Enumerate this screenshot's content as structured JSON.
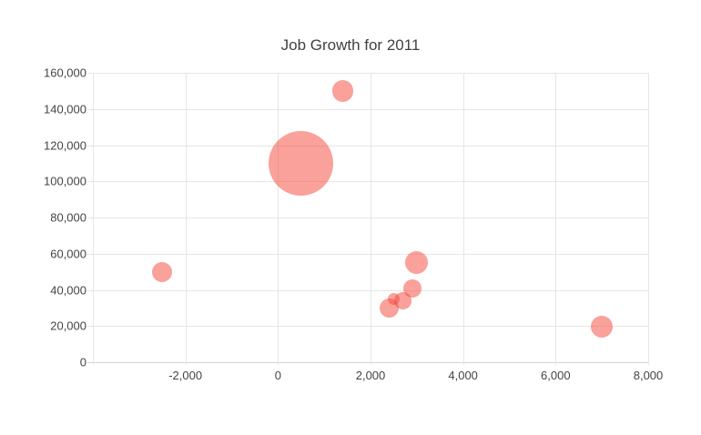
{
  "title": "Job Growth for 2011",
  "colors": {
    "bubble_fill": "#F44336",
    "bubble_opacity": 0.5,
    "title_text": "#424242",
    "axis_text": "#444444",
    "gridline": "#E6E6E6",
    "baseline": "#D4D4D4",
    "background": "#FFFFFF"
  },
  "chart_data": {
    "type": "scatter",
    "variant": "bubble",
    "title": "Job Growth for 2011",
    "xlabel": "",
    "ylabel": "",
    "xlim": [
      -4000,
      8000
    ],
    "ylim": [
      0,
      160000
    ],
    "grid": true,
    "legend": "none",
    "x_gridlines": [
      -4000,
      -2000,
      0,
      2000,
      4000,
      6000,
      8000
    ],
    "x_ticks": [
      -2000,
      0,
      2000,
      4000,
      6000,
      8000
    ],
    "x_tick_labels": [
      "-2,000",
      "0",
      "2,000",
      "4,000",
      "6,000",
      "8,000"
    ],
    "y_ticks": [
      0,
      20000,
      40000,
      60000,
      80000,
      100000,
      120000,
      140000,
      160000
    ],
    "y_tick_labels": [
      "0",
      "20,000",
      "40,000",
      "60,000",
      "80,000",
      "100,000",
      "120,000",
      "140,000",
      "160,000"
    ],
    "points": [
      {
        "x": -2500,
        "y": 50000,
        "r": 11.0
      },
      {
        "x": 500,
        "y": 110000,
        "r": 35.5
      },
      {
        "x": 1400,
        "y": 150000,
        "r": 11.7
      },
      {
        "x": 2400,
        "y": 30000,
        "r": 10.7
      },
      {
        "x": 2500,
        "y": 35000,
        "r": 6.8
      },
      {
        "x": 2700,
        "y": 34000,
        "r": 9.3
      },
      {
        "x": 2900,
        "y": 41000,
        "r": 10.0
      },
      {
        "x": 3000,
        "y": 55000,
        "r": 12.5
      },
      {
        "x": 7000,
        "y": 19500,
        "r": 12.0
      }
    ]
  }
}
